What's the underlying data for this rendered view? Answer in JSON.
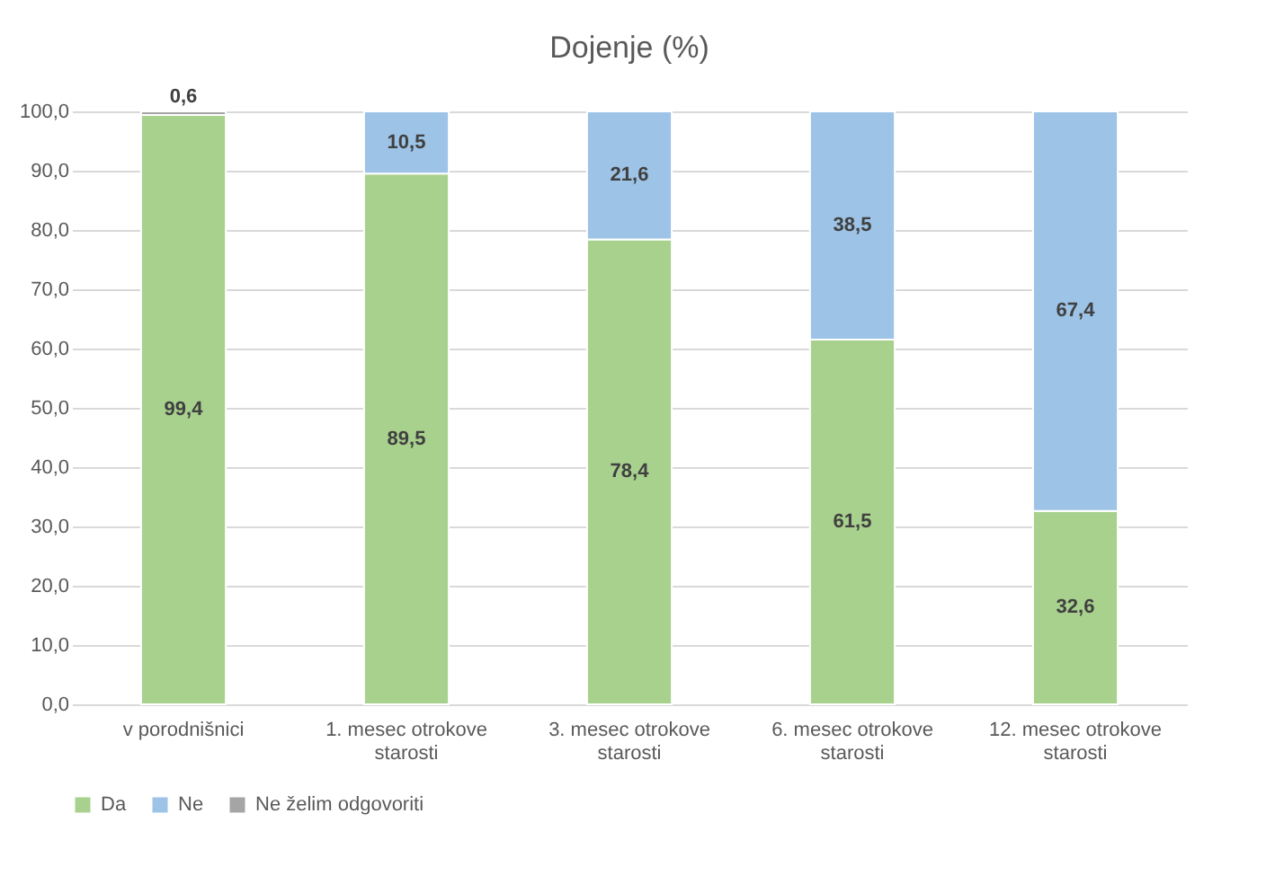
{
  "chart_data": {
    "type": "bar",
    "title": "Dojenje (%)",
    "stacked": true,
    "categories": [
      "v porodnišnici",
      "1. mesec otrokove starosti",
      "3. mesec otrokove starosti",
      "6. mesec otrokove starosti",
      "12. mesec otrokove starosti"
    ],
    "series": [
      {
        "name": "Da",
        "color": "#a9d18e",
        "values": [
          99.4,
          89.5,
          78.4,
          61.5,
          32.6
        ],
        "value_labels": [
          "99,4",
          "89,5",
          "78,4",
          "61,5",
          "32,6"
        ]
      },
      {
        "name": "Ne",
        "color": "#9dc3e6",
        "values": [
          null,
          10.5,
          21.6,
          38.5,
          67.4
        ],
        "value_labels": [
          null,
          "10,5",
          "21,6",
          "38,5",
          "67,4"
        ]
      },
      {
        "name": "Ne želim odgovoriti",
        "color": "#a5a5a5",
        "values": [
          0.6,
          null,
          null,
          null,
          null
        ],
        "value_labels": [
          "0,6",
          null,
          null,
          null,
          null
        ]
      }
    ],
    "ylim": [
      0,
      100
    ],
    "yticks": [
      {
        "value": 0,
        "label": "0,0"
      },
      {
        "value": 10,
        "label": "10,0"
      },
      {
        "value": 20,
        "label": "20,0"
      },
      {
        "value": 30,
        "label": "30,0"
      },
      {
        "value": 40,
        "label": "40,0"
      },
      {
        "value": 50,
        "label": "50,0"
      },
      {
        "value": 60,
        "label": "60,0"
      },
      {
        "value": 70,
        "label": "70,0"
      },
      {
        "value": 80,
        "label": "80,0"
      },
      {
        "value": 90,
        "label": "90,0"
      },
      {
        "value": 100,
        "label": "100,0"
      }
    ],
    "grid": "y",
    "legend": "bottom"
  }
}
